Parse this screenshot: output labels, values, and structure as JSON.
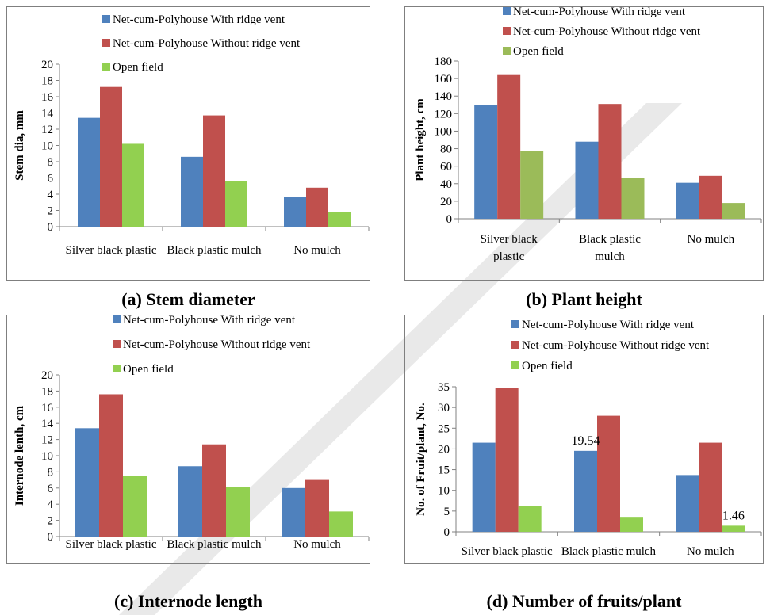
{
  "colors": {
    "series1": "#4f81bd",
    "series2": "#c0504d",
    "series3a": "#92d050",
    "series3b": "#9bbb59",
    "watermark": "#e9e9e9"
  },
  "captions": {
    "a": "(a) Stem diameter",
    "b": "(b) Plant height",
    "c": "(c) Internode length",
    "d": "(d) Number of fruits/plant"
  },
  "chart_data": [
    {
      "type": "bar",
      "categories": [
        "Silver black plastic",
        "Black plastic mulch",
        "No mulch"
      ],
      "category_lines": [
        [
          "Silver black plastic"
        ],
        [
          "Black plastic mulch"
        ],
        [
          "No mulch"
        ]
      ],
      "series": [
        {
          "name": "Net-cum-Polyhouse With ridge vent",
          "values": [
            13.4,
            8.6,
            3.7
          ]
        },
        {
          "name": "Net-cum-Polyhouse Without ridge vent",
          "values": [
            17.2,
            13.7,
            4.8
          ]
        },
        {
          "name": "Open field",
          "values": [
            10.2,
            5.6,
            1.8
          ]
        }
      ],
      "ylabel": "Stem dia, mm",
      "ylim": [
        0,
        20
      ],
      "yticks": [
        0,
        2,
        4,
        6,
        8,
        10,
        12,
        14,
        16,
        18,
        20
      ],
      "legend": "top",
      "grid": false
    },
    {
      "type": "bar",
      "categories": [
        "Silver black plastic",
        "Black plastic mulch",
        "No mulch"
      ],
      "category_lines": [
        [
          "Silver black",
          "plastic"
        ],
        [
          "Black plastic",
          "mulch"
        ],
        [
          "No mulch"
        ]
      ],
      "series": [
        {
          "name": "Net-cum-Polyhouse With ridge vent",
          "values": [
            130,
            88,
            41
          ]
        },
        {
          "name": "Net-cum-Polyhouse Without ridge vent",
          "values": [
            164,
            131,
            49
          ]
        },
        {
          "name": "Open field",
          "values": [
            77,
            47,
            18
          ]
        }
      ],
      "ylabel": "Plant height, cm",
      "ylim": [
        0,
        180
      ],
      "yticks": [
        0,
        20,
        40,
        60,
        80,
        100,
        120,
        140,
        160,
        180
      ],
      "legend": "top",
      "grid": false
    },
    {
      "type": "bar",
      "categories": [
        "Silver black plastic",
        "Black plastic mulch",
        "No mulch"
      ],
      "category_lines": [
        [
          "Silver black plastic"
        ],
        [
          "Black plastic mulch"
        ],
        [
          "No mulch"
        ]
      ],
      "series": [
        {
          "name": "Net-cum-Polyhouse With ridge vent",
          "values": [
            13.4,
            8.7,
            6.0
          ]
        },
        {
          "name": "Net-cum-Polyhouse Without ridge vent",
          "values": [
            17.6,
            11.4,
            7.0
          ]
        },
        {
          "name": "Open field",
          "values": [
            7.5,
            6.1,
            3.1
          ]
        }
      ],
      "ylabel": "Internode lenth, cm",
      "ylim": [
        0,
        20
      ],
      "yticks": [
        0,
        2,
        4,
        6,
        8,
        10,
        12,
        14,
        16,
        18,
        20
      ],
      "legend": "top",
      "grid": false
    },
    {
      "type": "bar",
      "categories": [
        "Silver black plastic",
        "Black plastic mulch",
        "No mulch"
      ],
      "category_lines": [
        [
          "Silver black plastic"
        ],
        [
          "Black plastic mulch"
        ],
        [
          "No mulch"
        ]
      ],
      "series": [
        {
          "name": "Net-cum-Polyhouse With ridge vent",
          "values": [
            21.5,
            19.54,
            13.7
          ]
        },
        {
          "name": "Net-cum-Polyhouse Without ridge vent",
          "values": [
            34.7,
            28.0,
            21.5
          ]
        },
        {
          "name": "Open field",
          "values": [
            6.2,
            3.6,
            1.46
          ]
        }
      ],
      "data_labels": [
        {
          "series": 0,
          "category": 1,
          "text": "19.54"
        },
        {
          "series": 2,
          "category": 2,
          "text": "1.46"
        }
      ],
      "ylabel": "No. of Fruit/plant, No.",
      "ylim": [
        0,
        35
      ],
      "yticks": [
        0,
        5,
        10,
        15,
        20,
        25,
        30,
        35
      ],
      "legend": "top",
      "grid": false
    }
  ]
}
